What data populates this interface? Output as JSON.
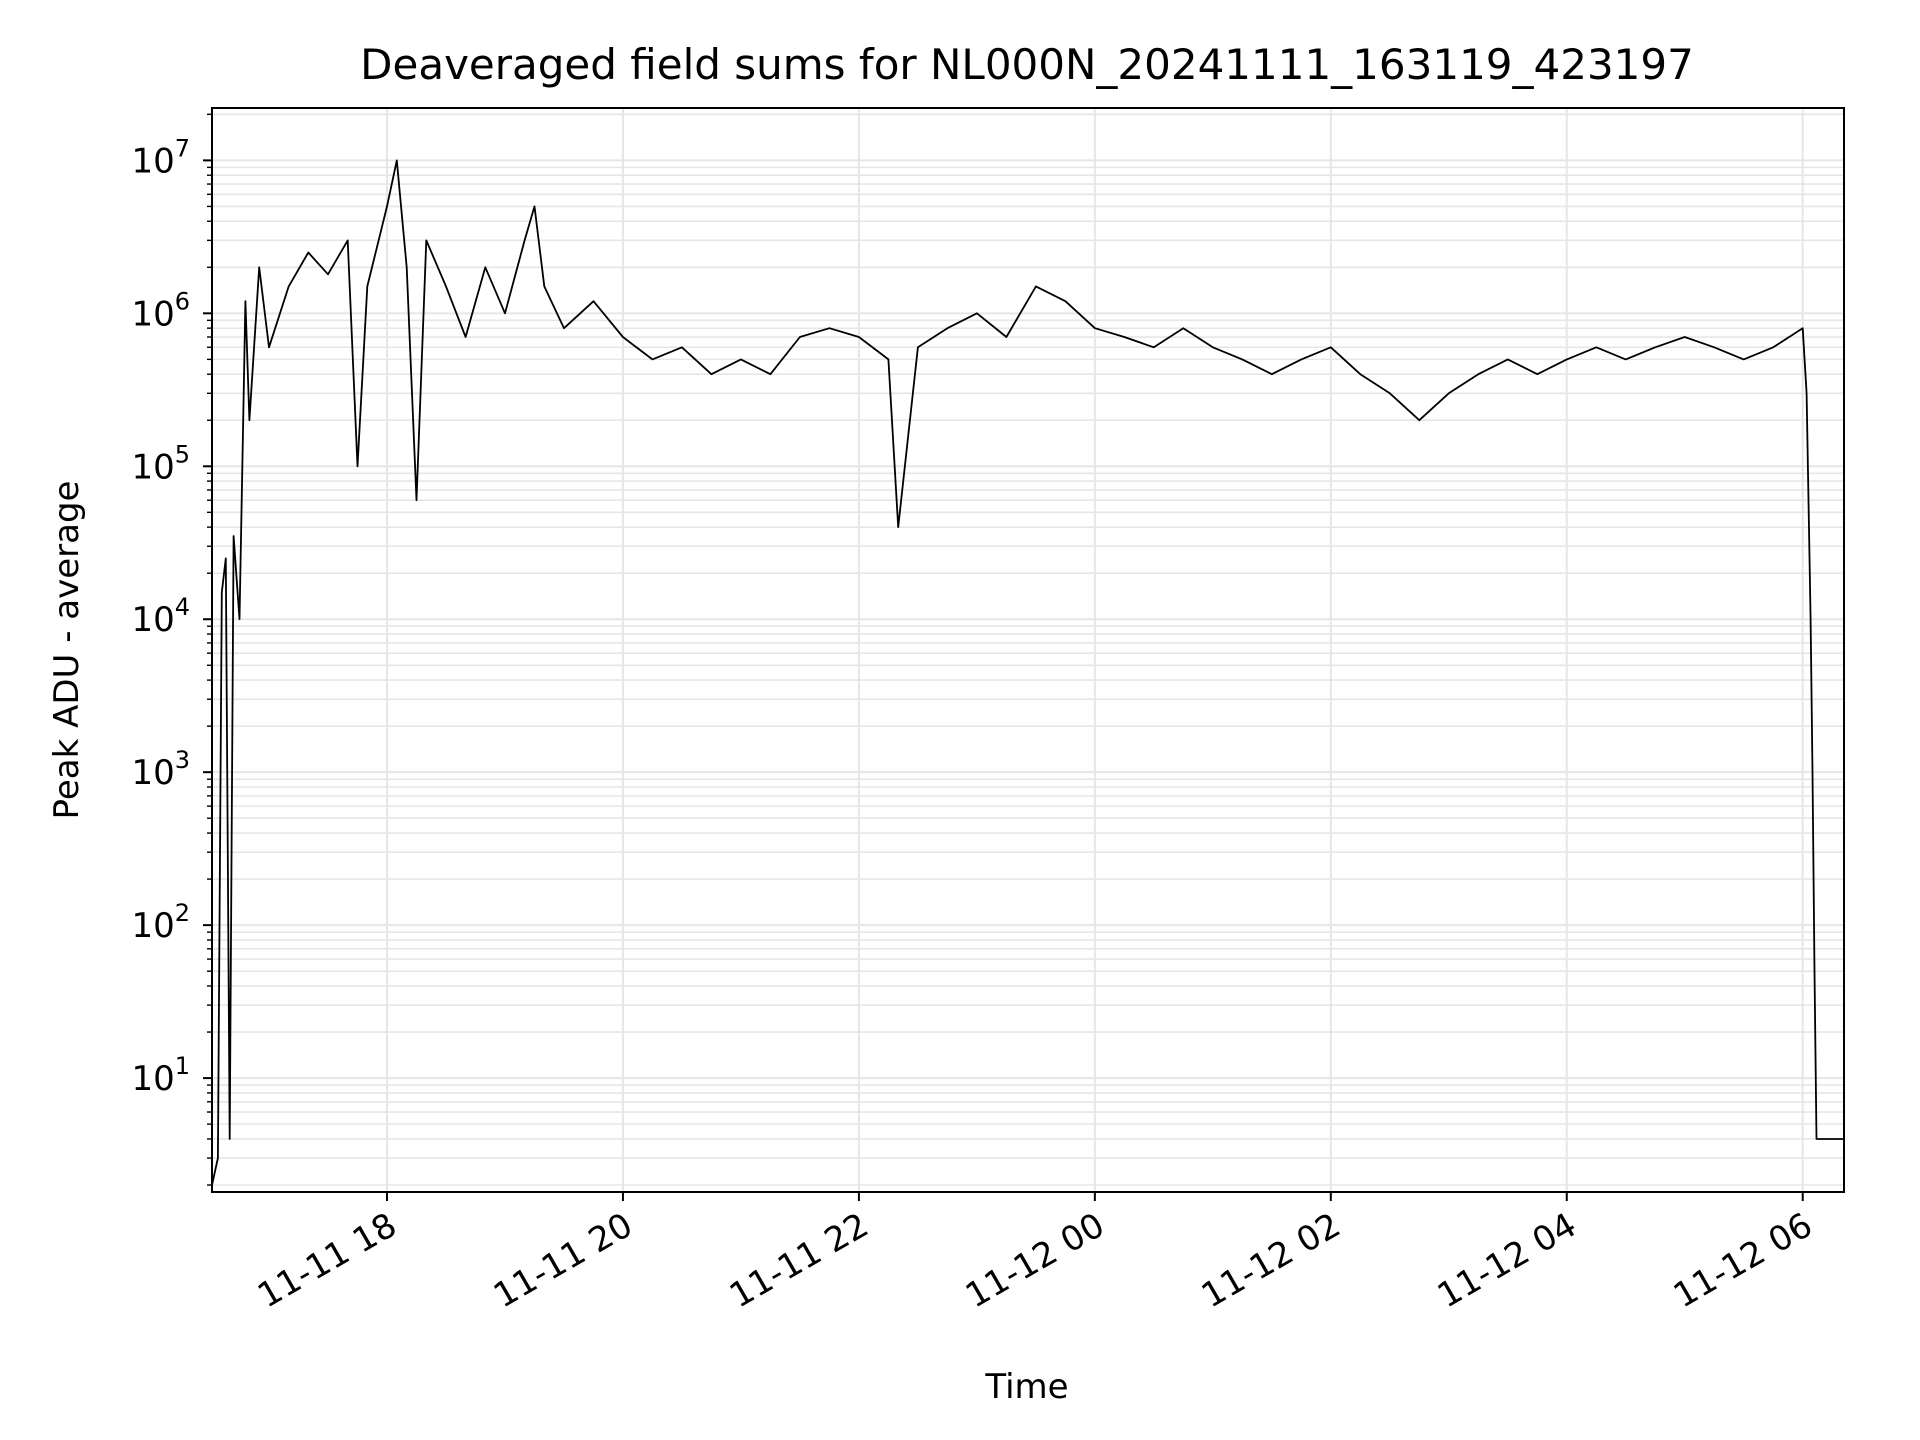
{
  "chart_data": {
    "type": "line",
    "title": "Deaveraged field sums for NL000N_20241111_163119_423197",
    "xlabel": "Time",
    "ylabel": "Peak ADU - average",
    "yscale": "log",
    "ylim": [
      1.8,
      22000000
    ],
    "xlim": [
      "2024-11-11 16:31",
      "2024-11-12 06:21"
    ],
    "grid": true,
    "x_ticks": [
      {
        "value": "2024-11-11 18:00",
        "label": "11-11 18"
      },
      {
        "value": "2024-11-11 20:00",
        "label": "11-11 20"
      },
      {
        "value": "2024-11-11 22:00",
        "label": "11-11 22"
      },
      {
        "value": "2024-11-12 00:00",
        "label": "11-12 00"
      },
      {
        "value": "2024-11-12 02:00",
        "label": "11-12 02"
      },
      {
        "value": "2024-11-12 04:00",
        "label": "11-12 04"
      },
      {
        "value": "2024-11-12 06:00",
        "label": "11-12 06"
      }
    ],
    "y_ticks": [
      {
        "value": 10,
        "base": "10",
        "exp": "1"
      },
      {
        "value": 100,
        "base": "10",
        "exp": "2"
      },
      {
        "value": 1000,
        "base": "10",
        "exp": "3"
      },
      {
        "value": 10000,
        "base": "10",
        "exp": "4"
      },
      {
        "value": 100000,
        "base": "10",
        "exp": "5"
      },
      {
        "value": 1000000,
        "base": "10",
        "exp": "6"
      },
      {
        "value": 10000000,
        "base": "10",
        "exp": "7"
      }
    ],
    "series": [
      {
        "color": "#000000",
        "points": [
          [
            "2024-11-11 16:31",
            2
          ],
          [
            "2024-11-11 16:34",
            3
          ],
          [
            "2024-11-11 16:36",
            15000
          ],
          [
            "2024-11-11 16:38",
            25000
          ],
          [
            "2024-11-11 16:40",
            4
          ],
          [
            "2024-11-11 16:42",
            35000
          ],
          [
            "2024-11-11 16:45",
            10000
          ],
          [
            "2024-11-11 16:48",
            1200000
          ],
          [
            "2024-11-11 16:50",
            200000
          ],
          [
            "2024-11-11 16:55",
            2000000
          ],
          [
            "2024-11-11 17:00",
            600000
          ],
          [
            "2024-11-11 17:10",
            1500000
          ],
          [
            "2024-11-11 17:20",
            2500000
          ],
          [
            "2024-11-11 17:30",
            1800000
          ],
          [
            "2024-11-11 17:40",
            3000000
          ],
          [
            "2024-11-11 17:45",
            100000
          ],
          [
            "2024-11-11 17:50",
            1500000
          ],
          [
            "2024-11-11 18:00",
            5000000
          ],
          [
            "2024-11-11 18:05",
            10000000
          ],
          [
            "2024-11-11 18:10",
            2000000
          ],
          [
            "2024-11-11 18:15",
            60000
          ],
          [
            "2024-11-11 18:20",
            3000000
          ],
          [
            "2024-11-11 18:30",
            1500000
          ],
          [
            "2024-11-11 18:40",
            700000
          ],
          [
            "2024-11-11 18:50",
            2000000
          ],
          [
            "2024-11-11 19:00",
            1000000
          ],
          [
            "2024-11-11 19:10",
            3000000
          ],
          [
            "2024-11-11 19:15",
            5000000
          ],
          [
            "2024-11-11 19:20",
            1500000
          ],
          [
            "2024-11-11 19:30",
            800000
          ],
          [
            "2024-11-11 19:45",
            1200000
          ],
          [
            "2024-11-11 20:00",
            700000
          ],
          [
            "2024-11-11 20:15",
            500000
          ],
          [
            "2024-11-11 20:30",
            600000
          ],
          [
            "2024-11-11 20:45",
            400000
          ],
          [
            "2024-11-11 21:00",
            500000
          ],
          [
            "2024-11-11 21:15",
            400000
          ],
          [
            "2024-11-11 21:30",
            700000
          ],
          [
            "2024-11-11 21:45",
            800000
          ],
          [
            "2024-11-11 22:00",
            700000
          ],
          [
            "2024-11-11 22:15",
            500000
          ],
          [
            "2024-11-11 22:20",
            40000
          ],
          [
            "2024-11-11 22:30",
            600000
          ],
          [
            "2024-11-11 22:45",
            800000
          ],
          [
            "2024-11-11 23:00",
            1000000
          ],
          [
            "2024-11-11 23:15",
            700000
          ],
          [
            "2024-11-11 23:30",
            1500000
          ],
          [
            "2024-11-11 23:45",
            1200000
          ],
          [
            "2024-11-12 00:00",
            800000
          ],
          [
            "2024-11-12 00:15",
            700000
          ],
          [
            "2024-11-12 00:30",
            600000
          ],
          [
            "2024-11-12 00:45",
            800000
          ],
          [
            "2024-11-12 01:00",
            600000
          ],
          [
            "2024-11-12 01:15",
            500000
          ],
          [
            "2024-11-12 01:30",
            400000
          ],
          [
            "2024-11-12 01:45",
            500000
          ],
          [
            "2024-11-12 02:00",
            600000
          ],
          [
            "2024-11-12 02:15",
            400000
          ],
          [
            "2024-11-12 02:30",
            300000
          ],
          [
            "2024-11-12 02:45",
            200000
          ],
          [
            "2024-11-12 03:00",
            300000
          ],
          [
            "2024-11-12 03:15",
            400000
          ],
          [
            "2024-11-12 03:30",
            500000
          ],
          [
            "2024-11-12 03:45",
            400000
          ],
          [
            "2024-11-12 04:00",
            500000
          ],
          [
            "2024-11-12 04:15",
            600000
          ],
          [
            "2024-11-12 04:30",
            500000
          ],
          [
            "2024-11-12 04:45",
            600000
          ],
          [
            "2024-11-12 05:00",
            700000
          ],
          [
            "2024-11-12 05:15",
            600000
          ],
          [
            "2024-11-12 05:30",
            500000
          ],
          [
            "2024-11-12 05:45",
            600000
          ],
          [
            "2024-11-12 06:00",
            800000
          ],
          [
            "2024-11-12 06:02",
            300000
          ],
          [
            "2024-11-12 06:04",
            10000
          ],
          [
            "2024-11-12 06:05",
            1000
          ],
          [
            "2024-11-12 06:06",
            50
          ],
          [
            "2024-11-12 06:07",
            4
          ],
          [
            "2024-11-12 06:21",
            4
          ]
        ]
      }
    ]
  }
}
